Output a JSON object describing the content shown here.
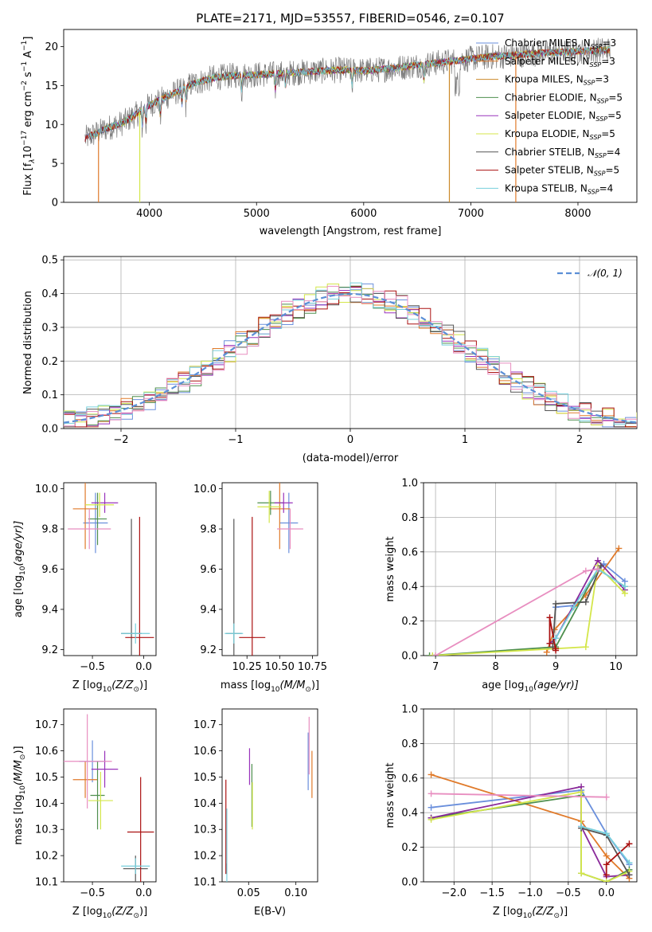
{
  "colors": {
    "chabrier_miles": "#6a8fdc",
    "salpeter_miles": "#e07a2a",
    "kroupa_miles": "#cc8a2a",
    "chabrier_elodie": "#4e8f4e",
    "salpeter_elodie": "#9933bb",
    "kroupa_elodie": "#d4e64a",
    "chabrier_stelib": "#555555",
    "salpeter_stelib": "#aa1111",
    "kroupa_stelib": "#77cfdc",
    "normal": "#5b8fd6",
    "weights": [
      "#6a8fdc",
      "#e07a2a",
      "#4e8f4e",
      "#8a2a9a",
      "#d4e64a",
      "#555555",
      "#aa1111",
      "#77cfdc",
      "#e88ec0"
    ]
  },
  "chart_data": [
    {
      "id": "spectrum",
      "type": "line",
      "title": "PLATE=2171, MJD=53557, FIBERID=0546, z=0.107",
      "xlabel": "wavelength [Angstrom, rest frame]",
      "ylabel_main": "Flux [f",
      "ylabel_lambda": "λ",
      "ylabel_mid": "10",
      "ylabel_exp1": "−17",
      "ylabel_unit": " erg cm",
      "ylabel_exp2": "−2",
      "ylabel_s": " s",
      "ylabel_exp3": "−1",
      "ylabel_a": " A",
      "ylabel_exp4": "−1",
      "ylabel_end": "]",
      "xlim": [
        3200,
        8550
      ],
      "ylim": [
        0,
        22.2
      ],
      "xticks": [
        "4000",
        "5000",
        "6000",
        "7000",
        "8000"
      ],
      "xtick_values": [
        4000,
        5000,
        6000,
        7000,
        8000
      ],
      "yticks": [
        "0",
        "5",
        "10",
        "15",
        "20"
      ],
      "ytick_values": [
        0,
        5,
        10,
        15,
        20
      ],
      "legend": [
        {
          "name": "Chabrier MILES",
          "n": "3",
          "color_key": "chabrier_miles"
        },
        {
          "name": "Salpeter MILES",
          "n": "3",
          "color_key": "salpeter_miles"
        },
        {
          "name": "Kroupa MILES",
          "n": "3",
          "color_key": "kroupa_miles"
        },
        {
          "name": "Chabrier ELODIE",
          "n": "5",
          "color_key": "chabrier_elodie"
        },
        {
          "name": "Salpeter ELODIE",
          "n": "5",
          "color_key": "salpeter_elodie"
        },
        {
          "name": "Kroupa ELODIE",
          "n": "5",
          "color_key": "kroupa_elodie"
        },
        {
          "name": "Chabrier STELIB",
          "n": "4",
          "color_key": "chabrier_stelib"
        },
        {
          "name": "Salpeter STELIB",
          "n": "5",
          "color_key": "salpeter_stelib"
        },
        {
          "name": "Kroupa STELIB",
          "n": "4",
          "color_key": "kroupa_stelib"
        }
      ],
      "legend_placement": "upper-right",
      "n_label": "N",
      "n_sub": "SSP",
      "continuum": [
        [
          3400,
          8.2
        ],
        [
          3600,
          9.5
        ],
        [
          3750,
          10.2
        ],
        [
          3900,
          11.5
        ],
        [
          4000,
          12.5
        ],
        [
          4200,
          13.8
        ],
        [
          4400,
          15.2
        ],
        [
          4600,
          16.0
        ],
        [
          4800,
          16.3
        ],
        [
          5000,
          16.4
        ],
        [
          5200,
          16.5
        ],
        [
          5500,
          16.8
        ],
        [
          5800,
          17.0
        ],
        [
          6000,
          16.9
        ],
        [
          6200,
          17.1
        ],
        [
          6500,
          17.6
        ],
        [
          6800,
          18.1
        ],
        [
          7100,
          18.6
        ],
        [
          7400,
          18.9
        ],
        [
          7700,
          19.2
        ],
        [
          8000,
          19.4
        ],
        [
          8300,
          19.6
        ]
      ],
      "drops": [
        {
          "x": 3525,
          "color_key": "salpeter_miles"
        },
        {
          "x": 3910,
          "color_key": "kroupa_elodie"
        },
        {
          "x": 6800,
          "color_key": "kroupa_miles"
        },
        {
          "x": 7420,
          "color_key": "salpeter_miles"
        }
      ]
    },
    {
      "id": "residuals",
      "type": "histogram",
      "xlabel": "(data-model)/error",
      "ylabel": "Normed distribution",
      "xlim": [
        -2.5,
        2.5
      ],
      "ylim": [
        0,
        0.51
      ],
      "xticks": [
        "−2",
        "−1",
        "0",
        "1",
        "2"
      ],
      "xtick_values": [
        -2,
        -1,
        0,
        1,
        2
      ],
      "yticks": [
        "0.0",
        "0.1",
        "0.2",
        "0.3",
        "0.4",
        "0.5"
      ],
      "ytick_values": [
        0,
        0.1,
        0.2,
        0.3,
        0.4,
        0.5
      ],
      "grid": true,
      "legend_label": "𝒩(0, 1)",
      "legend_placement": "upper-right",
      "bin_width": 0.1,
      "series_color_keys": [
        "chabrier_miles",
        "salpeter_miles",
        "chabrier_elodie",
        "salpeter_elodie",
        "kroupa_elodie",
        "chabrier_stelib",
        "salpeter_stelib",
        "kroupa_stelib",
        "weights"
      ],
      "normal_color_key": "normal"
    },
    {
      "id": "age_vs_Z",
      "type": "errorbar",
      "xlabel": "Z [log",
      "xlabel_sub": "10",
      "xlabel_math": "(Z/Z",
      "xlabel_sun": "⊙",
      "xlabel_end": ")]",
      "ylabel": "age  [log",
      "ylabel_sub": "10",
      "ylabel_math": "(age/yr)]",
      "xlim": [
        -0.78,
        0.12
      ],
      "ylim": [
        9.17,
        10.03
      ],
      "xticks": [
        "−0.5",
        "0.0"
      ],
      "xtick_values": [
        -0.5,
        0.0
      ],
      "yticks": [
        "9.2",
        "9.4",
        "9.6",
        "9.8",
        "10.0"
      ],
      "ytick_values": [
        9.2,
        9.4,
        9.6,
        9.8,
        10.0
      ],
      "points": [
        {
          "x": -0.47,
          "xe": 0.12,
          "y": 9.83,
          "ye": 0.15,
          "c": "#6a8fdc"
        },
        {
          "x": -0.57,
          "xe": 0.12,
          "y": 9.9,
          "ye": 0.2,
          "c": "#e07a2a"
        },
        {
          "x": -0.45,
          "xe": 0.09,
          "y": 9.85,
          "ye": 0.13,
          "c": "#4e8f4e"
        },
        {
          "x": -0.38,
          "xe": 0.13,
          "y": 9.93,
          "ye": 0.05,
          "c": "#9933bb"
        },
        {
          "x": -0.43,
          "xe": 0.14,
          "y": 9.92,
          "ye": 0.06,
          "c": "#d4e64a"
        },
        {
          "x": -0.12,
          "xe": 0.1,
          "y": 9.28,
          "ye": 0.57,
          "c": "#555555"
        },
        {
          "x": -0.04,
          "xe": 0.14,
          "y": 9.26,
          "ye": 0.6,
          "c": "#aa1111"
        },
        {
          "x": -0.08,
          "xe": 0.14,
          "y": 9.28,
          "ye": 0.05,
          "c": "#77cfdc"
        },
        {
          "x": -0.53,
          "xe": 0.21,
          "y": 9.8,
          "ye": 0.1,
          "c": "#e88ec0"
        }
      ]
    },
    {
      "id": "age_vs_mass",
      "type": "errorbar",
      "xlabel": "mass [log",
      "xlabel_sub": "10",
      "xlabel_math": "(M/M",
      "xlabel_sun": "⊙",
      "xlabel_end": ")]",
      "xlim": [
        10.06,
        10.79
      ],
      "ylim": [
        9.17,
        10.03
      ],
      "xticks": [
        "10.25",
        "10.50",
        "10.75"
      ],
      "xtick_values": [
        10.25,
        10.5,
        10.75
      ],
      "yticks": [
        "9.2",
        "9.4",
        "9.6",
        "9.8",
        "10.0"
      ],
      "ytick_values": [
        9.2,
        9.4,
        9.6,
        9.8,
        10.0
      ],
      "points": [
        {
          "x": 10.57,
          "xe": 0.07,
          "y": 9.83,
          "ye": 0.15,
          "c": "#6a8fdc"
        },
        {
          "x": 10.5,
          "xe": 0.08,
          "y": 9.9,
          "ye": 0.2,
          "c": "#e07a2a"
        },
        {
          "x": 10.43,
          "xe": 0.1,
          "y": 9.93,
          "ye": 0.06,
          "c": "#4e8f4e"
        },
        {
          "x": 10.53,
          "xe": 0.07,
          "y": 9.93,
          "ye": 0.05,
          "c": "#9933bb"
        },
        {
          "x": 10.42,
          "xe": 0.09,
          "y": 9.91,
          "ye": 0.08,
          "c": "#d4e64a"
        },
        {
          "x": 10.15,
          "xe": 0.06,
          "y": 9.28,
          "ye": 0.57,
          "c": "#555555"
        },
        {
          "x": 10.29,
          "xe": 0.1,
          "y": 9.26,
          "ye": 0.6,
          "c": "#aa1111"
        },
        {
          "x": 10.15,
          "xe": 0.07,
          "y": 9.28,
          "ye": 0.05,
          "c": "#77cfdc"
        },
        {
          "x": 10.58,
          "xe": 0.1,
          "y": 9.8,
          "ye": 0.1,
          "c": "#e88ec0"
        }
      ]
    },
    {
      "id": "weight_vs_age",
      "type": "line",
      "xlabel": "age  [log",
      "xlabel_sub": "10",
      "xlabel_math": "(age/yr)]",
      "ylabel": "mass weight",
      "xlim": [
        6.8,
        10.35
      ],
      "ylim": [
        0,
        1.0
      ],
      "xticks": [
        "7",
        "8",
        "9",
        "10"
      ],
      "xtick_values": [
        7,
        8,
        9,
        10
      ],
      "yticks": [
        "0.0",
        "0.2",
        "0.4",
        "0.6",
        "0.8",
        "1.0"
      ],
      "ytick_values": [
        0,
        0.2,
        0.4,
        0.6,
        0.8,
        1.0
      ],
      "grid": true,
      "series": [
        {
          "c": "#6a8fdc",
          "x": [
            9.0,
            9.3,
            9.8,
            10.15
          ],
          "y": [
            0.28,
            0.29,
            0.53,
            0.43
          ]
        },
        {
          "c": "#e07a2a",
          "x": [
            8.85,
            8.98,
            9.5,
            10.05
          ],
          "y": [
            0.02,
            0.15,
            0.35,
            0.62
          ]
        },
        {
          "c": "#4e8f4e",
          "x": [
            6.9,
            9.0,
            9.7,
            10.15
          ],
          "y": [
            0.0,
            0.05,
            0.5,
            0.4
          ]
        },
        {
          "c": "#8a2a9a",
          "x": [
            8.9,
            9.0,
            9.7,
            10.15
          ],
          "y": [
            0.07,
            0.1,
            0.55,
            0.38
          ]
        },
        {
          "c": "#d4e64a",
          "x": [
            6.95,
            9.5,
            9.7,
            10.15
          ],
          "y": [
            0.0,
            0.05,
            0.52,
            0.36
          ]
        },
        {
          "c": "#555555",
          "x": [
            8.95,
            9.0,
            9.5,
            9.75
          ],
          "y": [
            0.05,
            0.3,
            0.31,
            0.52
          ]
        },
        {
          "c": "#aa1111",
          "x": [
            8.9,
            8.9,
            9.0,
            9.0
          ],
          "y": [
            0.07,
            0.22,
            0.03,
            0.04
          ]
        },
        {
          "c": "#77cfdc",
          "x": [
            9.0,
            9.3,
            9.7,
            10.15
          ],
          "y": [
            0.1,
            0.28,
            0.5,
            0.4
          ]
        },
        {
          "c": "#e88ec0",
          "x": [
            7.0,
            9.5,
            9.7
          ],
          "y": [
            0.0,
            0.49,
            0.5
          ]
        }
      ]
    },
    {
      "id": "mass_vs_Z",
      "type": "errorbar",
      "xlabel": "Z [log",
      "xlabel_sub": "10",
      "xlabel_math": "(Z/Z",
      "xlabel_sun": "⊙",
      "xlabel_end": ")]",
      "ylabel": "mass [log",
      "ylabel_sub": "10",
      "ylabel_math": "(M/M",
      "ylabel_sun": "⊙",
      "ylabel_end": ")]",
      "xlim": [
        -0.78,
        0.12
      ],
      "ylim": [
        10.1,
        10.76
      ],
      "xticks": [
        "−0.5",
        "0.0"
      ],
      "xtick_values": [
        -0.5,
        0.0
      ],
      "yticks": [
        "10.1",
        "10.2",
        "10.3",
        "10.4",
        "10.5",
        "10.6",
        "10.7"
      ],
      "ytick_values": [
        10.1,
        10.2,
        10.3,
        10.4,
        10.5,
        10.6,
        10.7
      ],
      "points": [
        {
          "x": -0.5,
          "xe": 0.13,
          "y": 10.56,
          "ye": 0.08,
          "c": "#6a8fdc"
        },
        {
          "x": -0.57,
          "xe": 0.12,
          "y": 10.49,
          "ye": 0.07,
          "c": "#e07a2a"
        },
        {
          "x": -0.45,
          "xe": 0.07,
          "y": 10.43,
          "ye": 0.13,
          "c": "#4e8f4e"
        },
        {
          "x": -0.38,
          "xe": 0.13,
          "y": 10.53,
          "ye": 0.07,
          "c": "#9933bb"
        },
        {
          "x": -0.42,
          "xe": 0.12,
          "y": 10.41,
          "ye": 0.11,
          "c": "#d4e64a"
        },
        {
          "x": -0.08,
          "xe": 0.12,
          "y": 10.15,
          "ye": 0.05,
          "c": "#555555"
        },
        {
          "x": -0.03,
          "xe": 0.13,
          "y": 10.29,
          "ye": 0.21,
          "c": "#aa1111"
        },
        {
          "x": -0.08,
          "xe": 0.14,
          "y": 10.16,
          "ye": 0.03,
          "c": "#77cfdc"
        },
        {
          "x": -0.55,
          "xe": 0.24,
          "y": 10.56,
          "ye": 0.18,
          "c": "#e88ec0"
        }
      ]
    },
    {
      "id": "mass_vs_EBV",
      "type": "errorbar",
      "xlabel": "E(B-V)",
      "xlim": [
        0.022,
        0.123
      ],
      "ylim": [
        10.1,
        10.76
      ],
      "xticks": [
        "0.05",
        "0.10"
      ],
      "xtick_values": [
        0.05,
        0.1
      ],
      "yticks": [
        "10.1",
        "10.2",
        "10.3",
        "10.4",
        "10.5",
        "10.6",
        "10.7"
      ],
      "ytick_values": [
        10.1,
        10.2,
        10.3,
        10.4,
        10.5,
        10.6,
        10.7
      ],
      "points": [
        {
          "x": 0.113,
          "xe": 0,
          "y": 10.56,
          "ye": 0.11,
          "c": "#6a8fdc"
        },
        {
          "x": 0.117,
          "xe": 0,
          "y": 10.51,
          "ye": 0.09,
          "c": "#e07a2a"
        },
        {
          "x": 0.0535,
          "xe": 0,
          "y": 10.43,
          "ye": 0.12,
          "c": "#4e8f4e"
        },
        {
          "x": 0.051,
          "xe": 0,
          "y": 10.54,
          "ye": 0.07,
          "c": "#9933bb"
        },
        {
          "x": 0.054,
          "xe": 0,
          "y": 10.39,
          "ye": 0.09,
          "c": "#d4e64a"
        },
        {
          "x": 0.0265,
          "xe": 0,
          "y": 10.15,
          "ye": 0.02,
          "c": "#555555"
        },
        {
          "x": 0.026,
          "xe": 0,
          "y": 10.31,
          "ye": 0.18,
          "c": "#aa1111"
        },
        {
          "x": 0.027,
          "xe": 0,
          "y": 10.16,
          "ye": 0.22,
          "c": "#77cfdc"
        },
        {
          "x": 0.114,
          "xe": 0,
          "y": 10.62,
          "ye": 0.11,
          "c": "#e88ec0"
        }
      ]
    },
    {
      "id": "weight_vs_Z",
      "type": "line",
      "xlabel": "Z [log",
      "xlabel_sub": "10",
      "xlabel_math": "(Z/Z",
      "xlabel_sun": "⊙",
      "xlabel_end": ")]",
      "ylabel": "mass weight",
      "xlim": [
        -2.4,
        0.4
      ],
      "ylim": [
        0,
        1.0
      ],
      "xticks": [
        "−2.0",
        "−1.5",
        "−1.0",
        "−0.5",
        "0.0"
      ],
      "xtick_values": [
        -2.0,
        -1.5,
        -1.0,
        -0.5,
        0.0
      ],
      "yticks": [
        "0.0",
        "0.2",
        "0.4",
        "0.6",
        "0.8",
        "1.0"
      ],
      "ytick_values": [
        0,
        0.2,
        0.4,
        0.6,
        0.8,
        1.0
      ],
      "grid": true,
      "series": [
        {
          "c": "#6a8fdc",
          "x": [
            -2.3,
            -0.33,
            0.0,
            0.3
          ],
          "y": [
            0.43,
            0.53,
            0.28,
            0.1
          ]
        },
        {
          "c": "#e07a2a",
          "x": [
            -2.3,
            -0.33,
            0.0,
            0.3
          ],
          "y": [
            0.62,
            0.35,
            0.15,
            0.02
          ]
        },
        {
          "c": "#4e8f4e",
          "x": [
            -2.3,
            -0.33,
            -0.33,
            0.0,
            0.3
          ],
          "y": [
            0.37,
            0.5,
            0.05,
            0.0,
            0.07
          ]
        },
        {
          "c": "#8a2a9a",
          "x": [
            -2.3,
            -0.33,
            -0.33,
            0.0,
            0.3
          ],
          "y": [
            0.37,
            0.55,
            0.32,
            0.03,
            0.04
          ]
        },
        {
          "c": "#d4e64a",
          "x": [
            -2.3,
            -0.33,
            -0.33,
            0.0,
            0.3
          ],
          "y": [
            0.36,
            0.52,
            0.05,
            0.0,
            0.06
          ]
        },
        {
          "c": "#555555",
          "x": [
            -0.33,
            0.0,
            0.3
          ],
          "y": [
            0.31,
            0.27,
            0.04
          ]
        },
        {
          "c": "#aa1111",
          "x": [
            0.0,
            0.0,
            0.3
          ],
          "y": [
            0.04,
            0.1,
            0.22
          ]
        },
        {
          "c": "#77cfdc",
          "x": [
            -0.33,
            0.0,
            0.3
          ],
          "y": [
            0.32,
            0.28,
            0.11
          ]
        },
        {
          "c": "#e88ec0",
          "x": [
            -2.3,
            0.0
          ],
          "y": [
            0.51,
            0.49
          ]
        }
      ]
    }
  ]
}
